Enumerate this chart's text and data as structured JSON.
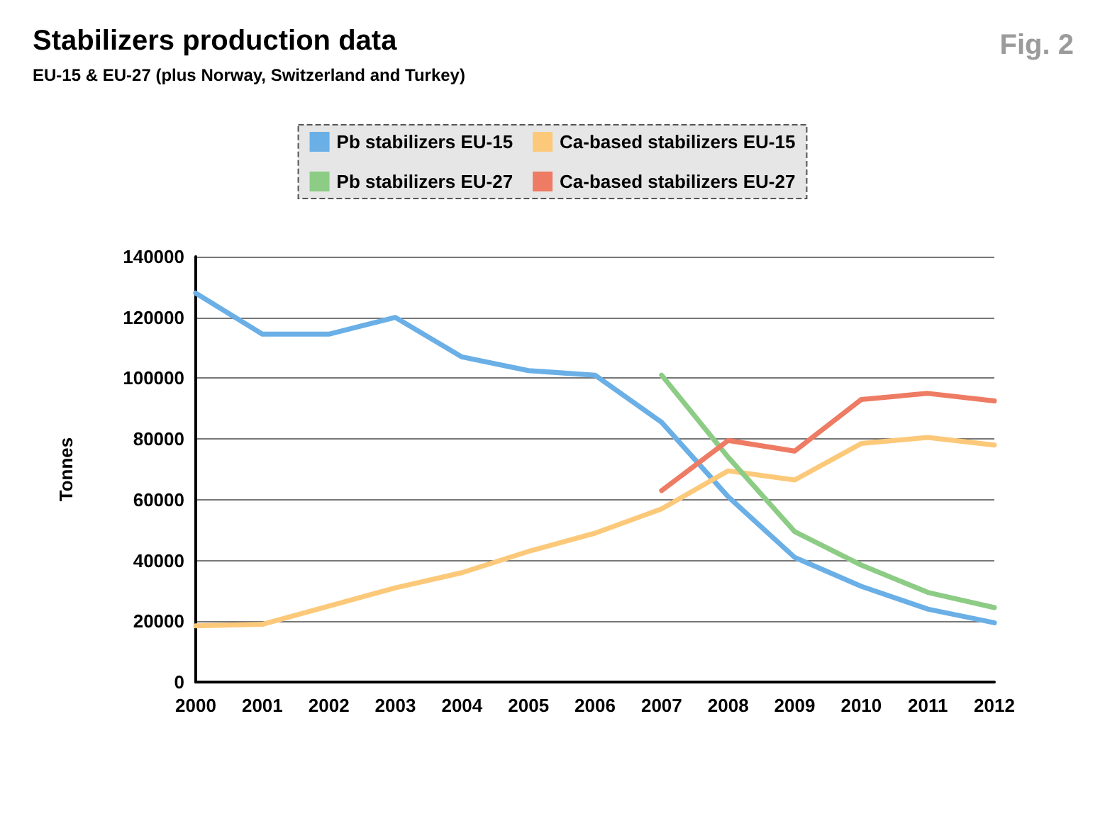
{
  "chart_data": {
    "type": "line",
    "title": "Stabilizers production data",
    "subtitle": "EU-15 & EU-27 (plus Norway, Switzerland and Turkey)",
    "ylabel": "Tonnes",
    "annotations": [
      "Fig. 2"
    ],
    "categories": [
      "2000",
      "2001",
      "2002",
      "2003",
      "2004",
      "2005",
      "2006",
      "2007",
      "2008",
      "2009",
      "2010",
      "2011",
      "2012"
    ],
    "series": [
      {
        "name": "Pb stabilizers EU-15",
        "color": "#6aafe6",
        "values": [
          128000,
          114500,
          114500,
          120000,
          107000,
          102500,
          101000,
          85500,
          61000,
          41000,
          31500,
          24000,
          19500
        ]
      },
      {
        "name": "Ca-based stabilizers EU-15",
        "color": "#fcc97a",
        "values": [
          18500,
          19000,
          25000,
          31000,
          36000,
          43000,
          49000,
          57000,
          69500,
          66500,
          78500,
          80500,
          78000
        ]
      },
      {
        "name": "Pb stabilizers EU-27",
        "color": "#8ccc85",
        "values": [
          null,
          null,
          null,
          null,
          null,
          null,
          null,
          101000,
          74000,
          49500,
          38500,
          29500,
          24500
        ]
      },
      {
        "name": "Ca-based stabilizers EU-27",
        "color": "#ee7b63",
        "values": [
          null,
          null,
          null,
          null,
          null,
          null,
          null,
          63000,
          79500,
          76000,
          93000,
          95000,
          92500
        ]
      }
    ],
    "ylim": [
      0,
      140000
    ],
    "yticks": [
      0,
      20000,
      40000,
      60000,
      80000,
      100000,
      120000,
      140000
    ],
    "grid": "y",
    "legend": "top",
    "marker": "none",
    "line_style": "solid"
  }
}
